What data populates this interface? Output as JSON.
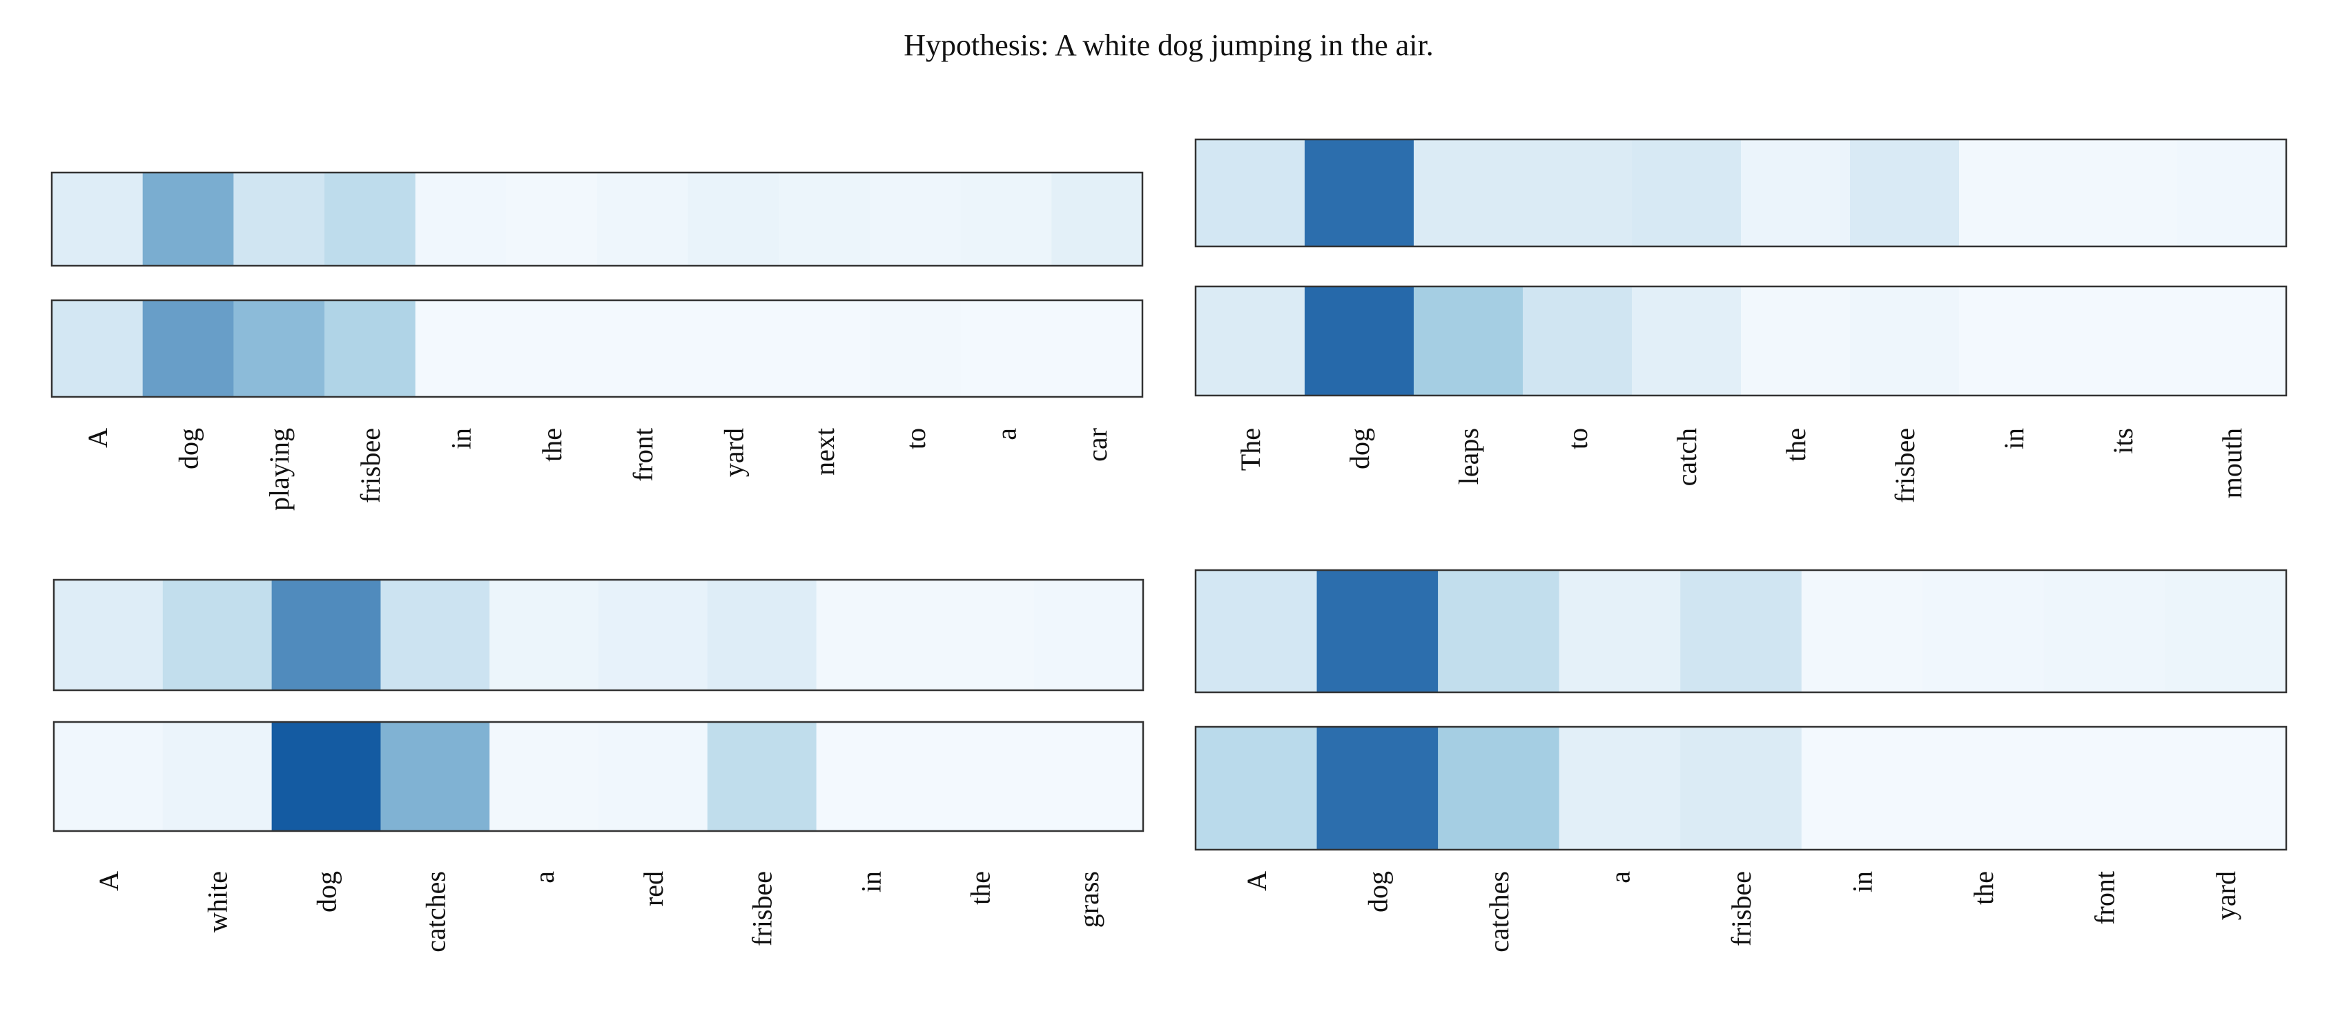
{
  "title": "Hypothesis: A white dog jumping in the air.",
  "colormap": {
    "low": "#f7fbff",
    "mid": "#9ecae1",
    "high": "#08519c"
  },
  "chart_data": [
    {
      "type": "heatmap",
      "position": "top-left",
      "tokens": [
        "A",
        "dog",
        "playing",
        "frisbee",
        "in",
        "the",
        "front",
        "yard",
        "next",
        "to",
        "a",
        "car"
      ],
      "rows": [
        [
          0.14,
          0.62,
          0.22,
          0.32,
          0.04,
          0.03,
          0.05,
          0.08,
          0.06,
          0.05,
          0.06,
          0.11
        ],
        [
          0.2,
          0.68,
          0.56,
          0.4,
          0.02,
          0.02,
          0.02,
          0.02,
          0.02,
          0.03,
          0.02,
          0.02
        ]
      ]
    },
    {
      "type": "heatmap",
      "position": "top-right",
      "tokens": [
        "The",
        "dog",
        "leaps",
        "to",
        "catch",
        "the",
        "frisbee",
        "in",
        "its",
        "mouth"
      ],
      "rows": [
        [
          0.2,
          0.88,
          0.16,
          0.16,
          0.18,
          0.07,
          0.17,
          0.03,
          0.03,
          0.04
        ],
        [
          0.16,
          0.9,
          0.46,
          0.22,
          0.12,
          0.03,
          0.05,
          0.02,
          0.02,
          0.02
        ]
      ]
    },
    {
      "type": "heatmap",
      "position": "bottom-left",
      "tokens": [
        "A",
        "white",
        "dog",
        "catches",
        "a",
        "red",
        "frisbee",
        "in",
        "the",
        "grass"
      ],
      "rows": [
        [
          0.14,
          0.3,
          0.76,
          0.24,
          0.06,
          0.09,
          0.14,
          0.03,
          0.03,
          0.04
        ],
        [
          0.04,
          0.07,
          0.96,
          0.6,
          0.03,
          0.04,
          0.31,
          0.02,
          0.02,
          0.02
        ]
      ]
    },
    {
      "type": "heatmap",
      "position": "bottom-right",
      "tokens": [
        "A",
        "dog",
        "catches",
        "a",
        "frisbee",
        "in",
        "the",
        "front",
        "yard"
      ],
      "rows": [
        [
          0.2,
          0.88,
          0.3,
          0.1,
          0.22,
          0.03,
          0.04,
          0.05,
          0.06
        ],
        [
          0.34,
          0.88,
          0.46,
          0.12,
          0.16,
          0.02,
          0.02,
          0.02,
          0.02
        ]
      ]
    }
  ]
}
